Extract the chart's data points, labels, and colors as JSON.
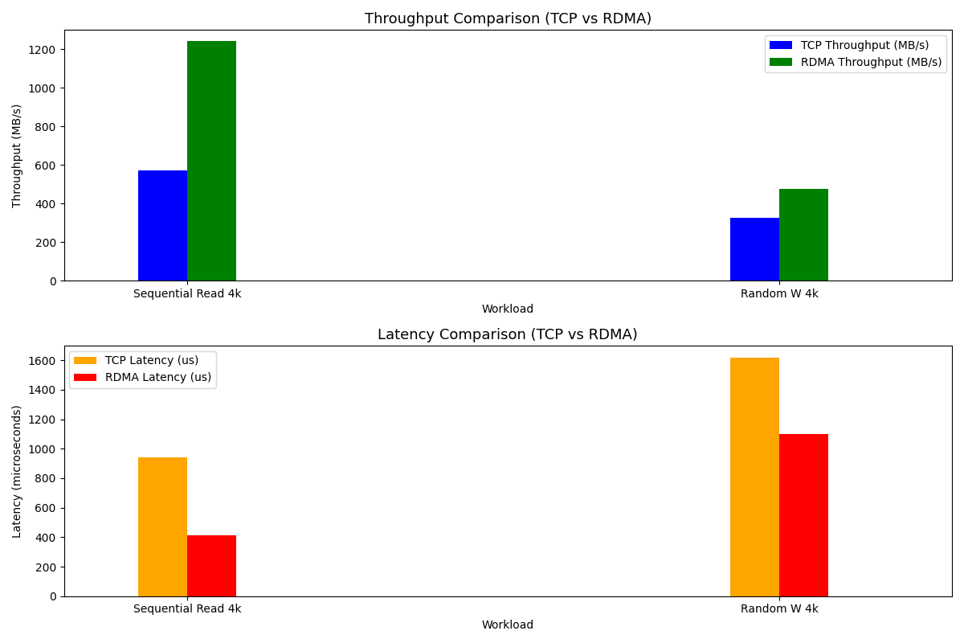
{
  "throughput": {
    "categories": [
      "Sequential Read 4k",
      "Random W 4k"
    ],
    "tcp_values": [
      570,
      325
    ],
    "rdma_values": [
      1245,
      475
    ],
    "tcp_color": "#0000ff",
    "rdma_color": "#008000",
    "title": "Throughput Comparison (TCP vs RDMA)",
    "ylabel": "Throughput (MB/s)",
    "xlabel": "Workload",
    "tcp_label": "TCP Throughput (MB/s)",
    "rdma_label": "RDMA Throughput (MB/s)",
    "x_positions": [
      0.5,
      3.5
    ],
    "ylim": [
      0,
      1300
    ]
  },
  "latency": {
    "categories": [
      "Sequential Read 4k",
      "Random W 4k"
    ],
    "tcp_values": [
      940,
      1620
    ],
    "rdma_values": [
      415,
      1100
    ],
    "tcp_color": "#ffa500",
    "rdma_color": "#ff0000",
    "title": "Latency Comparison (TCP vs RDMA)",
    "ylabel": "Latency (microseconds)",
    "xlabel": "Workload",
    "tcp_label": "TCP Latency (us)",
    "rdma_label": "RDMA Latency (us)",
    "x_positions": [
      0.5,
      3.5
    ],
    "ylim": [
      0,
      1700
    ]
  },
  "bar_width": 0.25,
  "figsize": [
    12.0,
    8.0
  ],
  "dpi": 100
}
